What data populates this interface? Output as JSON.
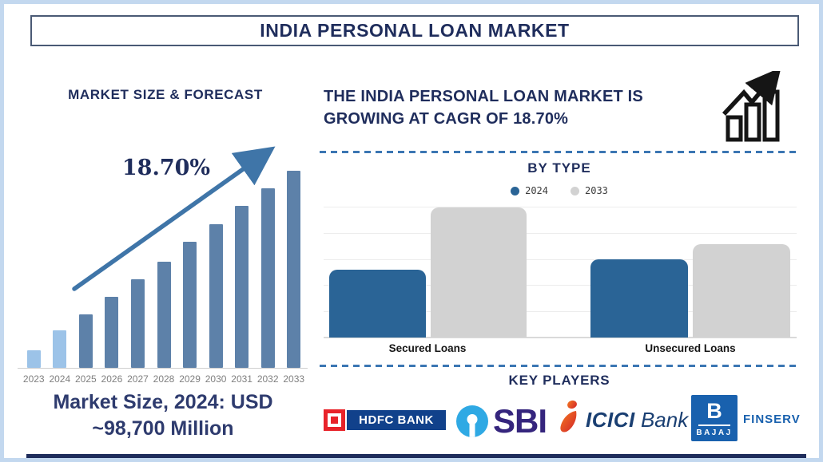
{
  "page": {
    "title": "INDIA PERSONAL LOAN MARKET"
  },
  "left_panel": {
    "heading": "MARKET SIZE & FORECAST",
    "cagr_label": "18.70%",
    "market_size_line1": "Market Size, 2024: USD",
    "market_size_line2": "~98,700 Million"
  },
  "right_panel": {
    "headline_line1": "THE INDIA PERSONAL LOAN MARKET IS",
    "headline_line2": "GROWING AT CAGR OF 18.70%",
    "by_type_heading": "BY TYPE",
    "key_players": {
      "heading": "KEY PLAYERS",
      "logos": [
        {
          "name": "HDFC Bank",
          "wordmark": "HDFC BANK"
        },
        {
          "name": "State Bank of India",
          "wordmark": "SBI"
        },
        {
          "name": "ICICI Bank",
          "wordmark_bold": "ICICI",
          "wordmark_regular": "Bank"
        },
        {
          "name": "Bajaj Finserv",
          "square_letter": "B",
          "square_word": "BAJAJ",
          "wordmark": "FINSERV"
        }
      ]
    }
  },
  "chart_data": [
    {
      "id": "market-size-forecast",
      "type": "bar",
      "title": "MARKET SIZE & FORECAST",
      "categories": [
        "2023",
        "2024",
        "2025",
        "2026",
        "2027",
        "2028",
        "2029",
        "2030",
        "2031",
        "2032",
        "2033"
      ],
      "values": [
        9,
        19,
        27,
        36,
        45,
        54,
        64,
        73,
        82,
        91,
        100
      ],
      "values_note": "relative bar heights (index, 2033 = 100); y-axis unlabeled",
      "highlight_categories": [
        "2023",
        "2024"
      ],
      "annotations": {
        "cagr_arrow_label": "18.70%",
        "known_point": "Market Size, 2024: USD ~98,700 Million"
      },
      "xlabel": "",
      "ylabel": "",
      "grid": false,
      "legend_position": "none"
    },
    {
      "id": "by-type",
      "type": "bar",
      "title": "BY TYPE",
      "categories": [
        "Secured Loans",
        "Unsecured Loans"
      ],
      "series": [
        {
          "name": "2024",
          "values": [
            52,
            60
          ]
        },
        {
          "name": "2033",
          "values": [
            100,
            72
          ]
        }
      ],
      "values_note": "relative heights (Secured Loans 2033 = 100); y-axis unlabeled",
      "xlabel": "",
      "ylabel": "",
      "grid": true,
      "legend_position": "top"
    }
  ],
  "colors": {
    "navy_text": "#1f2d5c",
    "market_size_text": "#2e3b6e",
    "forecast_bar": "#5d81a9",
    "forecast_bar_highlight": "#9cc3e8",
    "arrow": "#3f75a8",
    "year_label": "#7f7f7f",
    "by_type_2024": "#2a6496",
    "by_type_2033": "#d2d2d2",
    "dashed_separator": "#3b76b3",
    "frame_border": "#c3d8ef",
    "title_border": "#4a5a75",
    "hdfc_red": "#e8232a",
    "hdfc_navy": "#11418b",
    "sbi_blue": "#2fa9e4",
    "sbi_text": "#35257d",
    "icici_orange": "#f47b20",
    "icici_red": "#d2232a",
    "icici_text": "#1a3f72",
    "bajaj_blue": "#1961ae",
    "bottom_bar": "#1f2d5c"
  }
}
